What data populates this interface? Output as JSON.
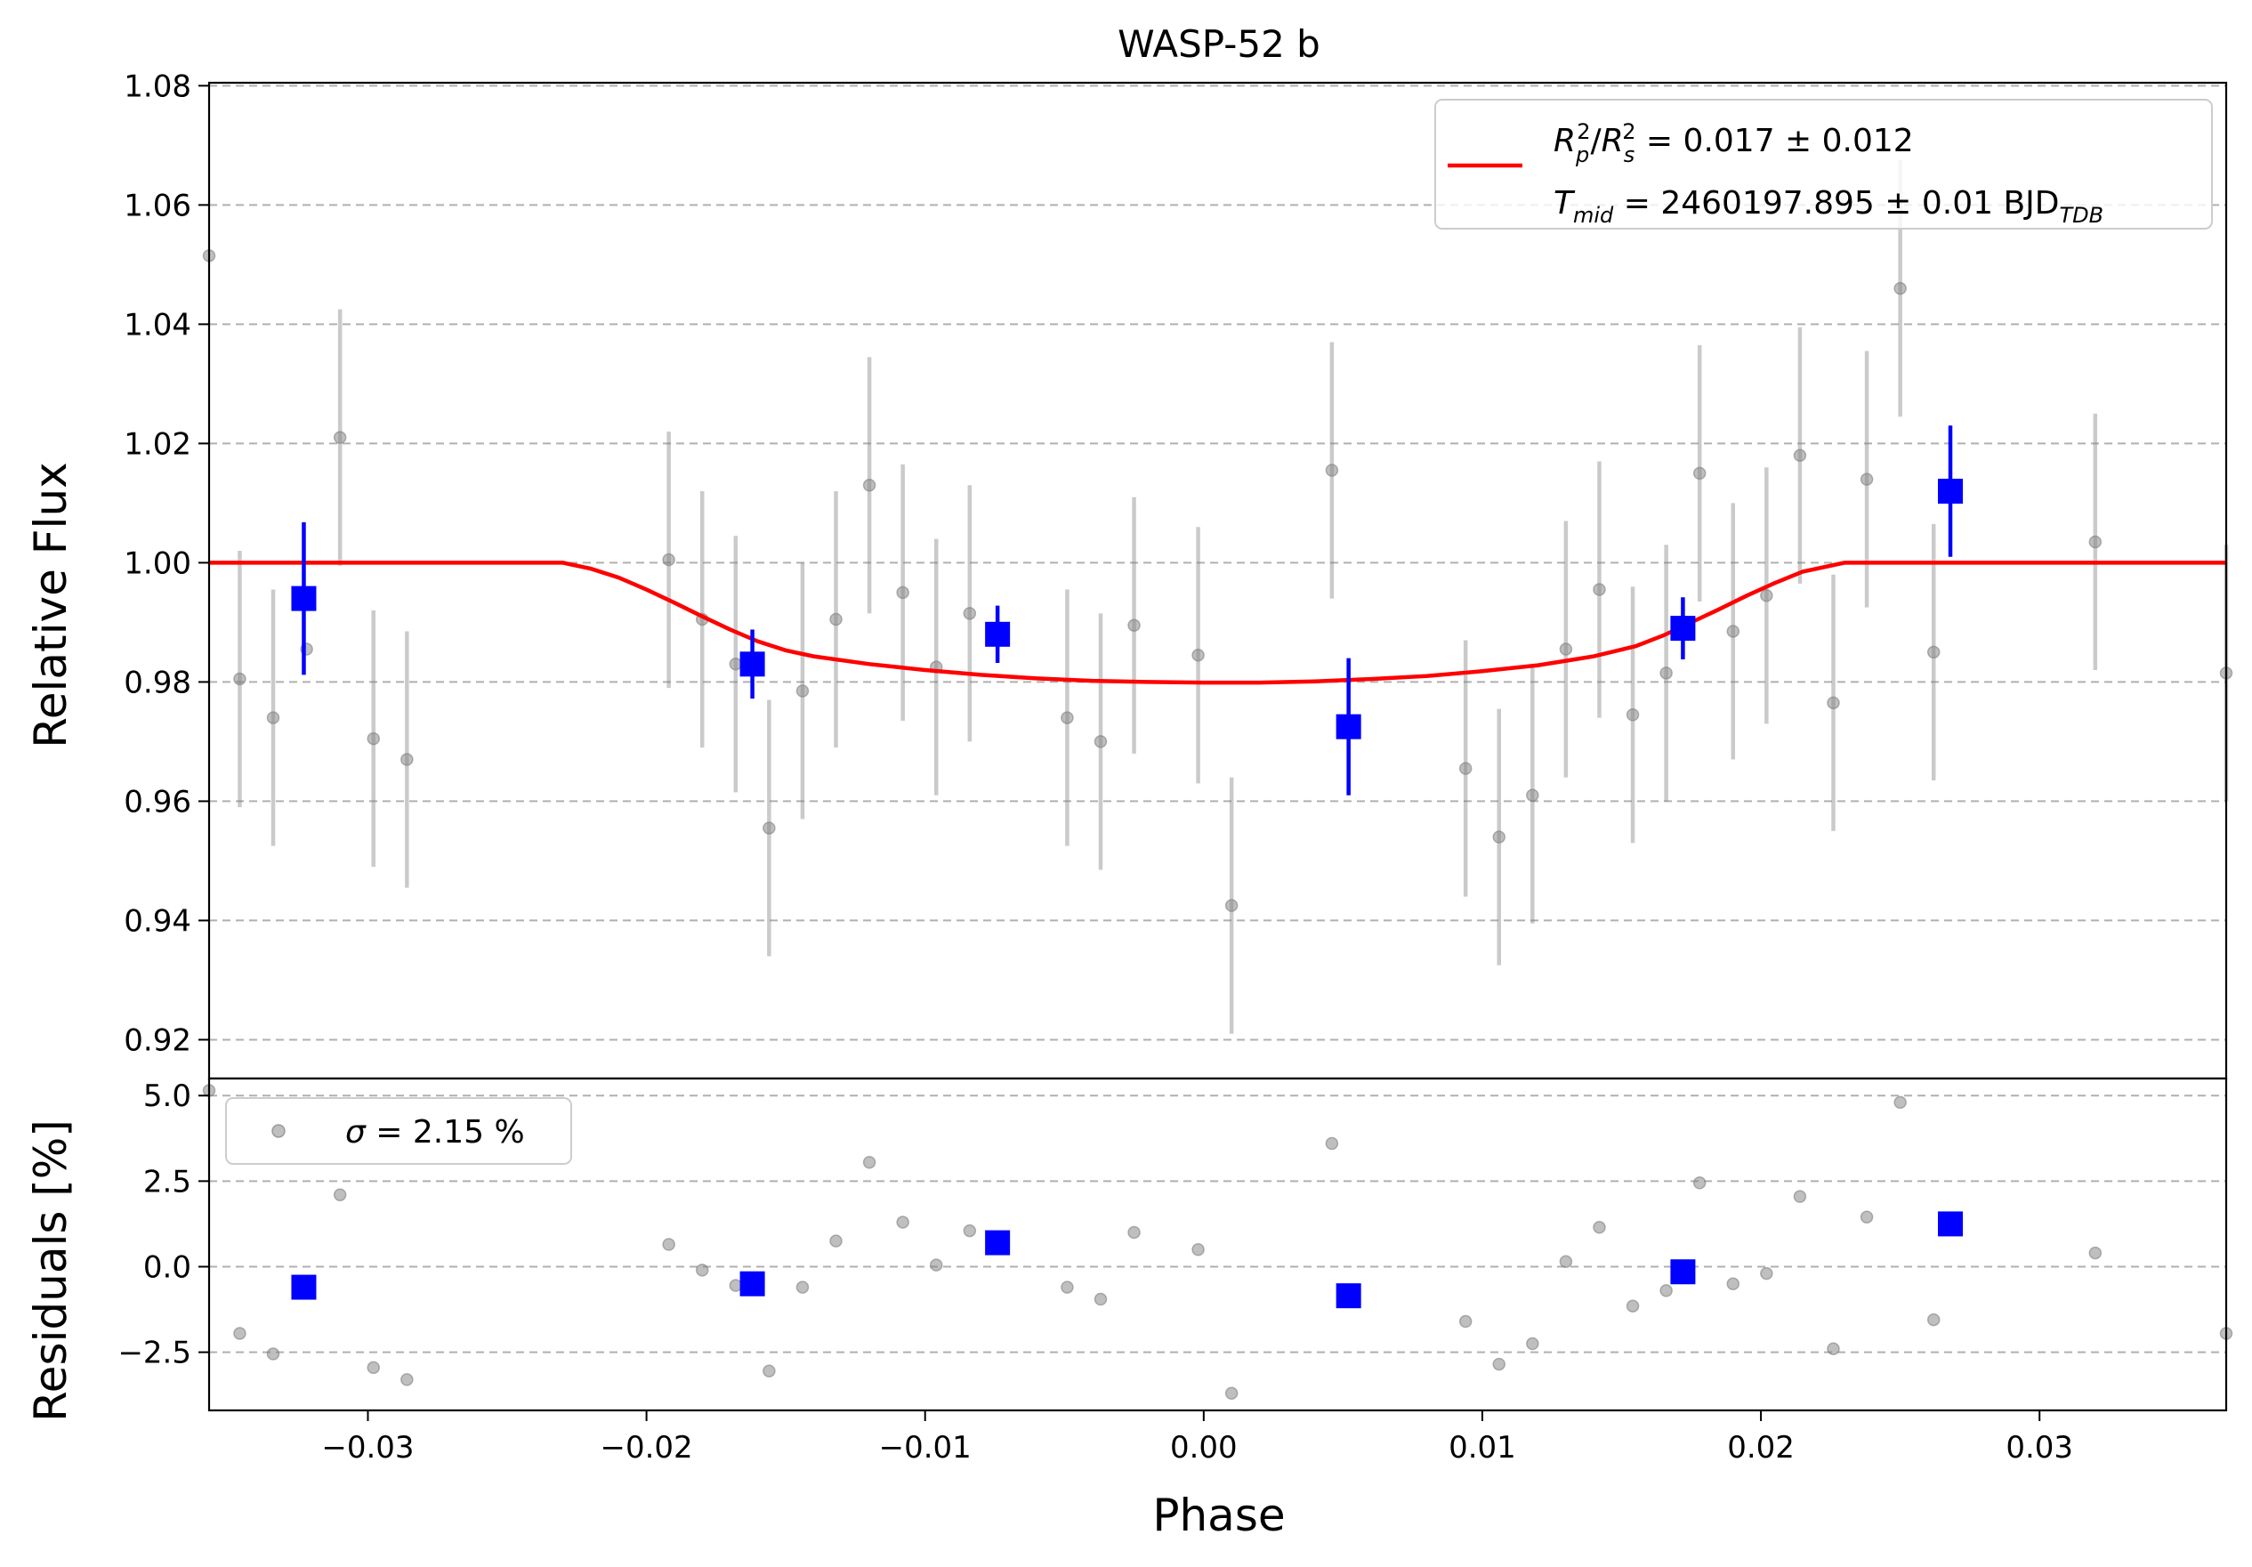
{
  "chart_data": [
    {
      "panel": "transit",
      "type": "scatter",
      "title": "WASP-52 b",
      "xlabel": "",
      "ylabel": "Relative Flux",
      "xlim": [
        -0.0357,
        0.0367
      ],
      "ylim": [
        0.9135,
        1.0805
      ],
      "grid": "y-dashed",
      "y_ticks": [
        "0.92",
        "0.94",
        "0.96",
        "0.98",
        "1.00",
        "1.02",
        "1.04",
        "1.06",
        "1.08"
      ],
      "legend": {
        "placement": "top-right",
        "color": "#ff0000",
        "line1": {
          "a": "R",
          "a_sub": "p",
          "a_sup": "2",
          "b": "R",
          "b_sub": "s",
          "b_sup": "2",
          "rest": " = 0.017 ± 0.012"
        },
        "line2": {
          "a": "T",
          "a_sub": "mid",
          "rest": " = 2460197.895 ± 0.01 BJD",
          "unit_sub": "TDB"
        }
      },
      "series": [
        {
          "kind": "raw",
          "color": "#808080",
          "points": [
            [
              -0.0357,
              1.0515,
              0
            ],
            [
              -0.0346,
              0.9805,
              0.0215
            ],
            [
              -0.0334,
              0.974,
              0.0215
            ],
            [
              -0.0322,
              0.9855,
              0
            ],
            [
              -0.031,
              1.021,
              0.0215
            ],
            [
              -0.0298,
              0.9705,
              0.0215
            ],
            [
              -0.0286,
              0.967,
              0.0215
            ],
            [
              -0.0192,
              1.0005,
              0.0215
            ],
            [
              -0.018,
              0.9905,
              0.0215
            ],
            [
              -0.0168,
              0.983,
              0.0215
            ],
            [
              -0.0156,
              0.9555,
              0.0215
            ],
            [
              -0.0144,
              0.9785,
              0.0215
            ],
            [
              -0.0132,
              0.9905,
              0.0215
            ],
            [
              -0.012,
              1.013,
              0.0215
            ],
            [
              -0.0108,
              0.995,
              0.0215
            ],
            [
              -0.0096,
              0.9825,
              0.0215
            ],
            [
              -0.0084,
              0.9915,
              0.0215
            ],
            [
              -0.0072,
              0.9885,
              0
            ],
            [
              -0.0049,
              0.974,
              0.0215
            ],
            [
              -0.0037,
              0.97,
              0.0215
            ],
            [
              -0.0025,
              0.9895,
              0.0215
            ],
            [
              -0.0002,
              0.9845,
              0.0215
            ],
            [
              0.001,
              0.9425,
              0.0215
            ],
            [
              0.0046,
              1.0155,
              0.0215
            ],
            [
              0.0094,
              0.9655,
              0.0215
            ],
            [
              0.0106,
              0.954,
              0.0215
            ],
            [
              0.0118,
              0.961,
              0.0215
            ],
            [
              0.013,
              0.9855,
              0.0215
            ],
            [
              0.0142,
              0.9955,
              0.0215
            ],
            [
              0.0154,
              0.9745,
              0.0215
            ],
            [
              0.0166,
              0.9815,
              0.0215
            ],
            [
              0.0178,
              1.015,
              0.0215
            ],
            [
              0.019,
              0.9885,
              0.0215
            ],
            [
              0.0202,
              0.9945,
              0.0215
            ],
            [
              0.0214,
              1.018,
              0.0215
            ],
            [
              0.0226,
              0.9765,
              0.0215
            ],
            [
              0.0238,
              1.014,
              0.0215
            ],
            [
              0.025,
              1.046,
              0.0215
            ],
            [
              0.0262,
              0.985,
              0.0215
            ],
            [
              0.032,
              1.0035,
              0.0215
            ],
            [
              0.0367,
              0.9815,
              0.0215
            ]
          ]
        },
        {
          "kind": "binned",
          "color": "#0000ff",
          "points": [
            [
              -0.0323,
              0.994,
              0.0128
            ],
            [
              -0.0162,
              0.983,
              0.0058
            ],
            [
              -0.0074,
              0.988,
              0.0048
            ],
            [
              0.0052,
              0.9725,
              0.0115
            ],
            [
              0.0172,
              0.989,
              0.0052
            ],
            [
              0.0268,
              1.012,
              0.011
            ]
          ]
        },
        {
          "kind": "model",
          "color": "#ff0000",
          "x": [
            -0.0357,
            -0.023,
            -0.022,
            -0.021,
            -0.02,
            -0.019,
            -0.018,
            -0.017,
            -0.016,
            -0.015,
            -0.014,
            -0.012,
            -0.01,
            -0.008,
            -0.006,
            -0.004,
            -0.002,
            0.0,
            0.002,
            0.004,
            0.006,
            0.008,
            0.01,
            0.012,
            0.014,
            0.0155,
            0.0165,
            0.0175,
            0.0185,
            0.0195,
            0.0205,
            0.0215,
            0.023,
            0.0367
          ],
          "y": [
            1.0,
            1.0,
            0.999,
            0.9975,
            0.9955,
            0.9933,
            0.991,
            0.9888,
            0.9868,
            0.9853,
            0.9843,
            0.983,
            0.982,
            0.9812,
            0.9806,
            0.9802,
            0.98,
            0.9799,
            0.9799,
            0.9801,
            0.9805,
            0.981,
            0.9818,
            0.9828,
            0.9843,
            0.986,
            0.9878,
            0.99,
            0.9922,
            0.9945,
            0.9966,
            0.9985,
            1.0,
            1.0
          ]
        }
      ]
    },
    {
      "panel": "residuals",
      "type": "scatter",
      "xlabel": "Phase",
      "ylabel": "Residuals [%]",
      "xlim": [
        -0.0357,
        0.0367
      ],
      "ylim": [
        -4.2,
        5.5
      ],
      "grid": "y-dashed",
      "x_ticks": [
        "−0.03",
        "−0.02",
        "−0.01",
        "0.00",
        "0.01",
        "0.02",
        "0.03"
      ],
      "y_ticks": [
        "−2.5",
        "0.0",
        "2.5",
        "5.0"
      ],
      "legend": {
        "placement": "top-left",
        "prefix": "σ",
        "rest": " = 2.15 %"
      },
      "series": [
        {
          "kind": "raw",
          "color": "#808080",
          "points": [
            [
              -0.0357,
              5.15
            ],
            [
              -0.0346,
              -1.95
            ],
            [
              -0.0334,
              -2.55
            ],
            [
              -0.031,
              2.1
            ],
            [
              -0.0298,
              -2.95
            ],
            [
              -0.0286,
              -3.3
            ],
            [
              -0.0192,
              0.65
            ],
            [
              -0.018,
              -0.1
            ],
            [
              -0.0168,
              -0.55
            ],
            [
              -0.0156,
              -3.05
            ],
            [
              -0.0144,
              -0.6
            ],
            [
              -0.0132,
              0.75
            ],
            [
              -0.012,
              3.05
            ],
            [
              -0.0108,
              1.3
            ],
            [
              -0.0096,
              0.05
            ],
            [
              -0.0084,
              1.05
            ],
            [
              -0.0049,
              -0.6
            ],
            [
              -0.0037,
              -0.95
            ],
            [
              -0.0025,
              1.0
            ],
            [
              -0.0002,
              0.5
            ],
            [
              0.001,
              -3.7
            ],
            [
              0.0046,
              3.6
            ],
            [
              0.0094,
              -1.6
            ],
            [
              0.0106,
              -2.85
            ],
            [
              0.0118,
              -2.25
            ],
            [
              0.013,
              0.15
            ],
            [
              0.0142,
              1.15
            ],
            [
              0.0154,
              -1.15
            ],
            [
              0.0166,
              -0.7
            ],
            [
              0.0178,
              2.45
            ],
            [
              0.019,
              -0.5
            ],
            [
              0.0202,
              -0.2
            ],
            [
              0.0214,
              2.05
            ],
            [
              0.0226,
              -2.4
            ],
            [
              0.0238,
              1.45
            ],
            [
              0.025,
              4.8
            ],
            [
              0.0262,
              -1.55
            ],
            [
              0.032,
              0.4
            ],
            [
              0.0367,
              -1.95
            ]
          ]
        },
        {
          "kind": "binned",
          "color": "#0000ff",
          "points": [
            [
              -0.0323,
              -0.6
            ],
            [
              -0.0162,
              -0.5
            ],
            [
              -0.0074,
              0.7
            ],
            [
              0.0052,
              -0.85
            ],
            [
              0.0172,
              -0.15
            ],
            [
              0.0268,
              1.25
            ]
          ]
        }
      ]
    }
  ]
}
